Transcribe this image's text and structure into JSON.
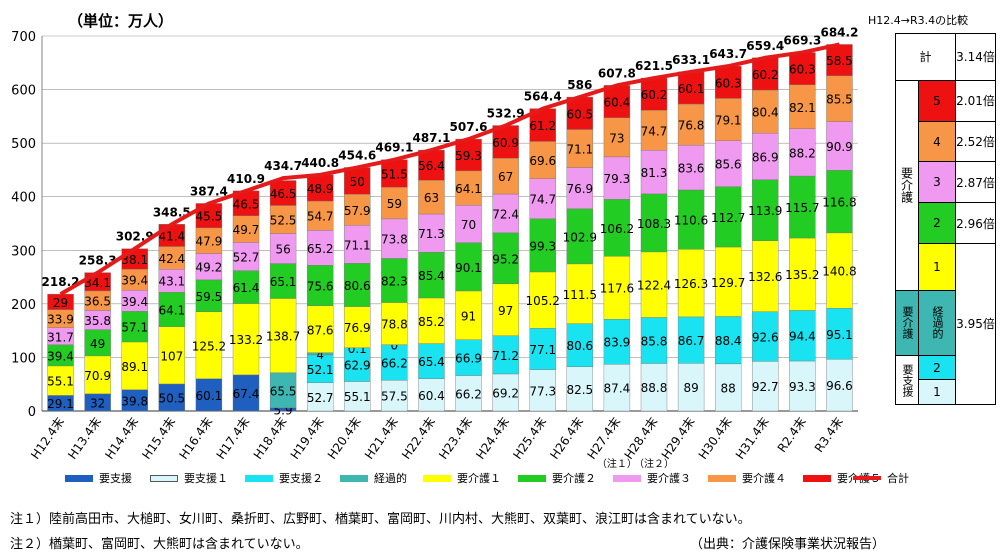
{
  "unit_label": "（単位：万人）",
  "comparison_title": "H12.4→R3.4の比較",
  "chart_data": {
    "type": "bar",
    "stacked": true,
    "categories": [
      "H12.4末",
      "H13.4末",
      "H14.4末",
      "H15.4末",
      "H16.4末",
      "H17.4末",
      "H18.4末",
      "H19.4末",
      "H20.4末",
      "H21.4末",
      "H22.4末",
      "H23.4末",
      "H24.4末",
      "H25.4末",
      "H26.4末",
      "H27.4末",
      "H28.4末",
      "H29.4末",
      "H30.4末",
      "H31.4末",
      "R2.4末",
      "R3.4末"
    ],
    "category_notes": [
      "",
      "",
      "",
      "",
      "",
      "",
      "",
      "",
      "",
      "",
      "",
      "",
      "",
      "",
      "",
      "（注１）",
      "（注２）",
      "",
      "",
      "",
      "",
      ""
    ],
    "ylim": [
      0,
      700
    ],
    "yticks": [
      0,
      100,
      200,
      300,
      400,
      500,
      600,
      700
    ],
    "series": [
      {
        "name": "要支援",
        "color": "#1f5fbf",
        "values": [
          29.1,
          32,
          39.8,
          50.5,
          60.1,
          67.4,
          5.9,
          null,
          null,
          null,
          null,
          null,
          null,
          null,
          null,
          null,
          null,
          null,
          null,
          null,
          null,
          null
        ]
      },
      {
        "name": "要支援１",
        "color": "#d9f7fb",
        "values": [
          null,
          null,
          null,
          null,
          null,
          null,
          null,
          52.7,
          55.1,
          57.5,
          60.4,
          66.2,
          69.2,
          77.3,
          82.5,
          87.4,
          88.8,
          89,
          88,
          92.7,
          93.3,
          96.6
        ]
      },
      {
        "name": "要支援２",
        "color": "#19e3f0",
        "values": [
          null,
          null,
          null,
          null,
          null,
          null,
          null,
          52.1,
          62.9,
          66.2,
          65.4,
          66.9,
          71.2,
          77.1,
          80.6,
          83.9,
          85.8,
          86.7,
          88.4,
          92.6,
          94.4,
          95.1
        ]
      },
      {
        "name": "経過的",
        "color": "#3eb7b2",
        "values": [
          null,
          null,
          null,
          null,
          null,
          null,
          65.5,
          4,
          0.1,
          0,
          null,
          null,
          null,
          null,
          null,
          null,
          null,
          null,
          null,
          null,
          null,
          null
        ]
      },
      {
        "name": "要介護１",
        "color": "#ffff00",
        "values": [
          55.1,
          70.9,
          89.1,
          107,
          125.2,
          133.2,
          138.7,
          87.6,
          76.9,
          78.8,
          85.2,
          91,
          97,
          105.2,
          111.5,
          117.6,
          122.4,
          126.3,
          129.7,
          132.6,
          135.2,
          140.8
        ]
      },
      {
        "name": "要介護２",
        "color": "#22cc22",
        "values": [
          39.4,
          49,
          57.1,
          64.1,
          59.5,
          61.4,
          65.1,
          75.6,
          80.6,
          82.3,
          85.4,
          90.1,
          95.2,
          99.3,
          102.9,
          106.2,
          108.3,
          110.6,
          112.7,
          113.9,
          115.7,
          116.8
        ]
      },
      {
        "name": "要介護３",
        "color": "#f099f0",
        "values": [
          31.7,
          35.8,
          39.4,
          43.1,
          49.2,
          52.7,
          56,
          65.2,
          71.1,
          73.8,
          71.3,
          70,
          72.4,
          74.7,
          76.9,
          79.3,
          81.3,
          83.6,
          85.6,
          86.9,
          88.2,
          90.9
        ]
      },
      {
        "name": "要介護４",
        "color": "#f79646",
        "values": [
          33.9,
          36.5,
          39.4,
          42.4,
          47.9,
          49.7,
          52.5,
          54.7,
          57.9,
          59,
          63,
          64.1,
          67,
          69.6,
          71.1,
          73,
          74.7,
          76.8,
          79.1,
          80.4,
          82.1,
          85.5
        ]
      },
      {
        "name": "要介護５",
        "color": "#ee1111",
        "values": [
          29,
          34.1,
          38.1,
          41.4,
          45.5,
          46.5,
          46.5,
          48.9,
          50,
          51.5,
          56.4,
          59.3,
          60.9,
          61.2,
          60.5,
          60.4,
          60.2,
          60.1,
          60.3,
          60.2,
          60.3,
          58.5
        ]
      }
    ],
    "total": {
      "name": "合計",
      "color": "#e51a1a",
      "values": [
        218.2,
        258.3,
        302.9,
        348.5,
        387.4,
        410.9,
        434.7,
        440.8,
        454.6,
        469.1,
        487.1,
        507.6,
        532.9,
        564.4,
        586,
        607.8,
        621.5,
        633.1,
        643.7,
        659.4,
        669.3,
        684.2
      ]
    }
  },
  "comparison_table": {
    "total_label": "計",
    "total_ratio": "3.14倍",
    "kaigo_group_label": "要介護",
    "kaigo_rows": [
      {
        "level": "5",
        "color": "#ee1111",
        "ratio": "2.01倍"
      },
      {
        "level": "4",
        "color": "#f79646",
        "ratio": "2.52倍"
      },
      {
        "level": "3",
        "color": "#f099f0",
        "ratio": "2.87倍"
      },
      {
        "level": "2",
        "color": "#22cc22",
        "ratio": "2.96倍"
      },
      {
        "level": "1",
        "color": "#ffff00",
        "ratio": ""
      }
    ],
    "keika_group_label": "要介護",
    "keika_label": "経過的",
    "shien_group_label": "要支援",
    "shien_rows": [
      {
        "level": "2",
        "color": "#19e3f0"
      },
      {
        "level": "1",
        "color": "#d9f7fb"
      }
    ],
    "shien_ratio": "3.95倍"
  },
  "notes": [
    "注１）陸前高田市、大槌町、女川町、桑折町、広野町、楢葉町、富岡町、川内村、大熊町、双葉町、浪江町は含まれていない。",
    "注２）楢葉町、富岡町、大熊町は含まれていない。"
  ],
  "source": "（出典：介護保険事業状況報告）"
}
